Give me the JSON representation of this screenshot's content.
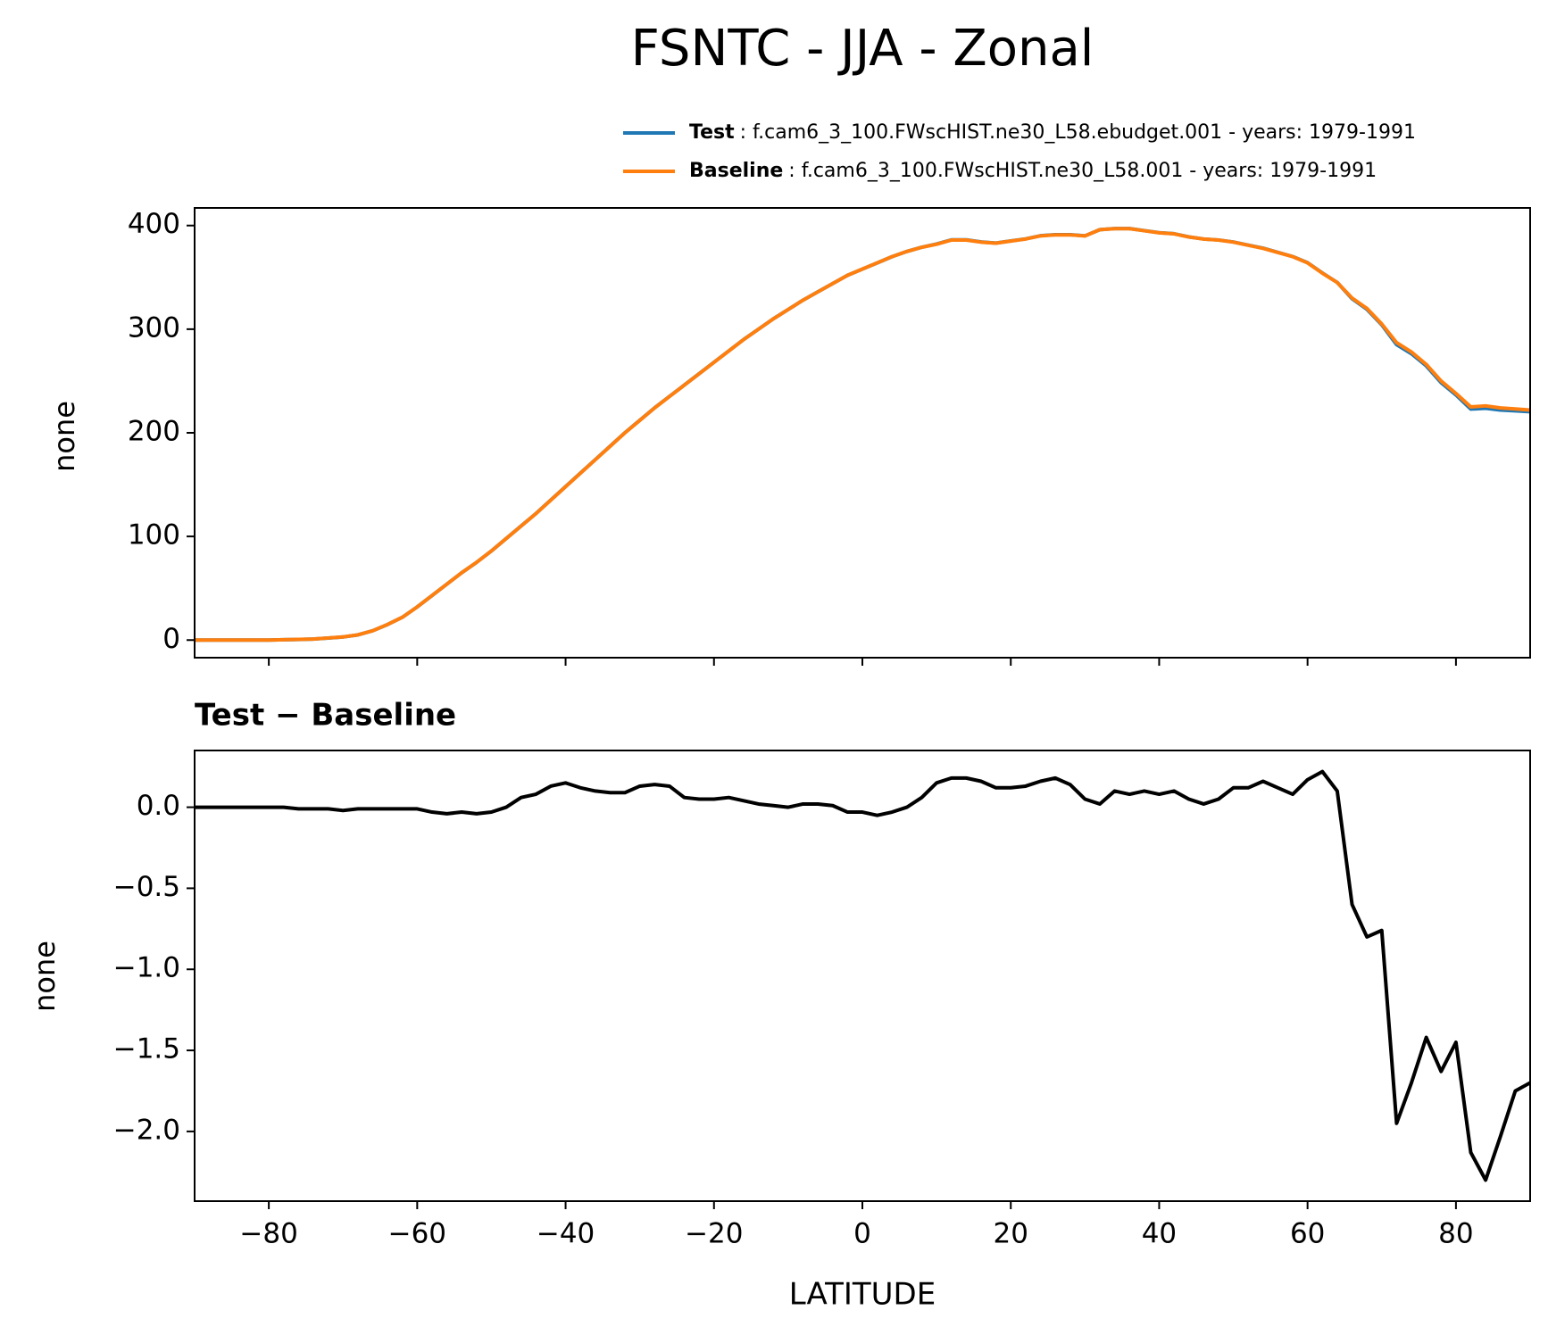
{
  "chart_data": [
    {
      "type": "line",
      "title": "FSNTC - JJA - Zonal",
      "ylabel": "none",
      "x": [
        -90,
        -88,
        -86,
        -84,
        -82,
        -80,
        -78,
        -76,
        -74,
        -72,
        -70,
        -68,
        -66,
        -64,
        -62,
        -60,
        -58,
        -56,
        -54,
        -52,
        -50,
        -48,
        -46,
        -44,
        -42,
        -40,
        -38,
        -36,
        -34,
        -32,
        -30,
        -28,
        -26,
        -24,
        -22,
        -20,
        -18,
        -16,
        -14,
        -12,
        -10,
        -8,
        -6,
        -4,
        -2,
        0,
        2,
        4,
        6,
        8,
        10,
        12,
        14,
        16,
        18,
        20,
        22,
        24,
        26,
        28,
        30,
        32,
        34,
        36,
        38,
        40,
        42,
        44,
        46,
        48,
        50,
        52,
        54,
        56,
        58,
        60,
        62,
        64,
        66,
        68,
        70,
        72,
        74,
        76,
        78,
        80,
        82,
        84,
        86,
        88,
        90
      ],
      "series": [
        {
          "name": "Test",
          "description": ": f.cam6_3_100.FWscHIST.ne30_L58.ebudget.001 - years: 1979-1991",
          "color": "#1f77b4",
          "values": [
            0,
            0,
            0,
            0,
            0,
            0,
            0.3,
            0.59,
            0.99,
            1.99,
            2.98,
            4.99,
            8.99,
            14.99,
            21.99,
            31.99,
            42.97,
            53.96,
            64.97,
            74.96,
            85.97,
            98,
            110.06,
            122.08,
            135.13,
            148.15,
            161.12,
            174.1,
            187.09,
            200.09,
            212.13,
            224.14,
            235.13,
            246.06,
            257.05,
            268.05,
            279.06,
            290.04,
            300.02,
            310.01,
            319,
            328.02,
            336.02,
            344.01,
            351.97,
            357.97,
            363.95,
            369.97,
            375,
            379.06,
            382.15,
            386.18,
            386.18,
            384.16,
            383.12,
            385.12,
            387.13,
            390.16,
            391.18,
            391.14,
            390.05,
            396.02,
            397.1,
            397.08,
            395.1,
            393.08,
            392.1,
            389.05,
            387.02,
            386.05,
            384.12,
            381.12,
            378.16,
            374.12,
            370.08,
            364.17,
            354.22,
            345.1,
            329.4,
            319.2,
            304.24,
            285.05,
            276.3,
            264.58,
            248.37,
            236.55,
            222.87,
            223.7,
            221.97,
            221.25,
            220.3
          ]
        },
        {
          "name": "Baseline",
          "description": ": f.cam6_3_100.FWscHIST.ne30_L58.001 - years: 1979-1991",
          "color": "#ff7f0e",
          "values": [
            0,
            0,
            0,
            0,
            0,
            0,
            0.3,
            0.6,
            1,
            2,
            3,
            5,
            9,
            15,
            22,
            32,
            43,
            54,
            65,
            75,
            86,
            98,
            110,
            122,
            135,
            148,
            161,
            174,
            187,
            200,
            212,
            224,
            235,
            246,
            257,
            268,
            279,
            290,
            300,
            310,
            319,
            328,
            336,
            344,
            352,
            358,
            364,
            370,
            375,
            379,
            382,
            386,
            386,
            384,
            383,
            385,
            387,
            390,
            391,
            391,
            390,
            396,
            397,
            397,
            395,
            393,
            392,
            389,
            387,
            386,
            384,
            381,
            378,
            374,
            370,
            364,
            354,
            345,
            330,
            320,
            305,
            287,
            278,
            266,
            250,
            238,
            225,
            226,
            224,
            223,
            222
          ]
        }
      ],
      "xlim": [
        -90,
        90
      ],
      "xticks": [
        -80,
        -60,
        -40,
        -20,
        0,
        20,
        40,
        60,
        80
      ],
      "ylim": [
        -17,
        417
      ],
      "yticks": [
        0,
        100,
        200,
        300,
        400
      ]
    },
    {
      "type": "line",
      "title": "Test − Baseline",
      "xlabel": "LATITUDE",
      "ylabel": "none",
      "x": [
        -90,
        -88,
        -86,
        -84,
        -82,
        -80,
        -78,
        -76,
        -74,
        -72,
        -70,
        -68,
        -66,
        -64,
        -62,
        -60,
        -58,
        -56,
        -54,
        -52,
        -50,
        -48,
        -46,
        -44,
        -42,
        -40,
        -38,
        -36,
        -34,
        -32,
        -30,
        -28,
        -26,
        -24,
        -22,
        -20,
        -18,
        -16,
        -14,
        -12,
        -10,
        -8,
        -6,
        -4,
        -2,
        0,
        2,
        4,
        6,
        8,
        10,
        12,
        14,
        16,
        18,
        20,
        22,
        24,
        26,
        28,
        30,
        32,
        34,
        36,
        38,
        40,
        42,
        44,
        46,
        48,
        50,
        52,
        54,
        56,
        58,
        60,
        62,
        64,
        66,
        68,
        70,
        72,
        74,
        76,
        78,
        80,
        82,
        84,
        86,
        88,
        90
      ],
      "series": [
        {
          "color": "#000000",
          "values": [
            0,
            0,
            0,
            0,
            0,
            0,
            0,
            -0.01,
            -0.01,
            -0.01,
            -0.02,
            -0.01,
            -0.01,
            -0.01,
            -0.01,
            -0.01,
            -0.03,
            -0.04,
            -0.03,
            -0.04,
            -0.03,
            0,
            0.06,
            0.08,
            0.13,
            0.15,
            0.12,
            0.1,
            0.09,
            0.09,
            0.13,
            0.14,
            0.13,
            0.06,
            0.05,
            0.05,
            0.06,
            0.04,
            0.02,
            0.01,
            0,
            0.02,
            0.02,
            0.01,
            -0.03,
            -0.03,
            -0.05,
            -0.03,
            0,
            0.06,
            0.15,
            0.18,
            0.18,
            0.16,
            0.12,
            0.12,
            0.13,
            0.16,
            0.18,
            0.14,
            0.05,
            0.02,
            0.1,
            0.08,
            0.1,
            0.08,
            0.1,
            0.05,
            0.02,
            0.05,
            0.12,
            0.12,
            0.16,
            0.12,
            0.08,
            0.17,
            0.22,
            0.1,
            -0.6,
            -0.8,
            -0.76,
            -1.95,
            -1.7,
            -1.42,
            -1.63,
            -1.45,
            -2.13,
            -2.3,
            -2.03,
            -1.75,
            -1.7
          ]
        }
      ],
      "xlim": [
        -90,
        90
      ],
      "xticks": [
        {
          "value": -80,
          "label": "−80"
        },
        {
          "value": -60,
          "label": "−60"
        },
        {
          "value": -40,
          "label": "−40"
        },
        {
          "value": -20,
          "label": "−20"
        },
        0,
        20,
        40,
        60,
        80
      ],
      "ylim": [
        -2.43,
        0.35
      ],
      "yticks": [
        {
          "value": 0,
          "label": "0.0"
        },
        {
          "value": -0.5,
          "label": "−0.5"
        },
        {
          "value": -1,
          "label": "−1.0"
        },
        {
          "value": -1.5,
          "label": "−1.5"
        },
        {
          "value": -2,
          "label": "−2.0"
        }
      ]
    }
  ]
}
